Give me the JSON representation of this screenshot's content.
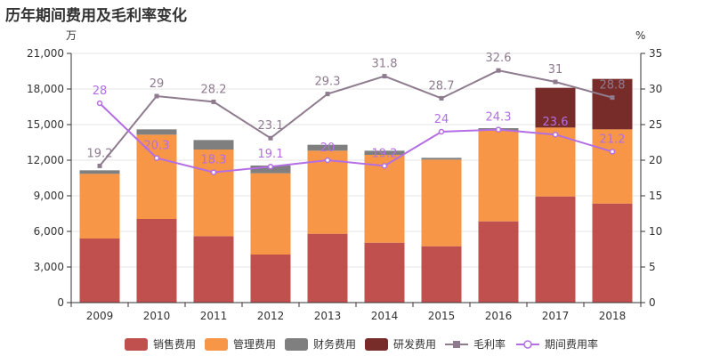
{
  "title": "历年期间费用及毛利率变化",
  "chart_data": {
    "type": "bar",
    "title": "历年期间费用及毛利率变化",
    "categories": [
      "2009",
      "2010",
      "2011",
      "2012",
      "2013",
      "2014",
      "2015",
      "2016",
      "2017",
      "2018"
    ],
    "y_left": {
      "unit": "万",
      "range": [
        0,
        21000
      ],
      "ticks": [
        0,
        3000,
        6000,
        9000,
        12000,
        15000,
        18000,
        21000
      ],
      "tick_labels": [
        "0",
        "3,000",
        "6,000",
        "9,000",
        "12,000",
        "15,000",
        "18,000",
        "21,000"
      ]
    },
    "y_right": {
      "unit": "%",
      "range": [
        0,
        35
      ],
      "ticks": [
        0,
        5,
        10,
        15,
        20,
        25,
        30,
        35
      ],
      "tick_labels": [
        "0",
        "5",
        "10",
        "15",
        "20",
        "25",
        "30",
        "35"
      ]
    },
    "grid": true,
    "legend_position": "bottom",
    "bar_series": [
      {
        "name": "销售费用",
        "color": "#c0504d",
        "values": [
          5400,
          7050,
          5600,
          4050,
          5800,
          5050,
          4750,
          6850,
          8950,
          8350
        ]
      },
      {
        "name": "管理费用",
        "color": "#f79646",
        "values": [
          5450,
          7100,
          7300,
          6850,
          7000,
          7400,
          7300,
          7650,
          5800,
          6250
        ]
      },
      {
        "name": "财务费用",
        "color": "#7f7f7f",
        "values": [
          300,
          450,
          800,
          650,
          500,
          350,
          150,
          200,
          0,
          0
        ]
      },
      {
        "name": "研发费用",
        "color": "#772c2a",
        "values": [
          0,
          0,
          0,
          0,
          0,
          0,
          0,
          0,
          3350,
          4250
        ]
      }
    ],
    "line_series": [
      {
        "name": "毛利率",
        "color": "#8e7b8e",
        "marker": "square",
        "values": [
          19.2,
          29,
          28.2,
          23.1,
          29.3,
          31.8,
          28.7,
          32.6,
          31,
          28.8
        ],
        "labels": [
          "19.2",
          "29",
          "28.2",
          "23.1",
          "29.3",
          "31.8",
          "28.7",
          "32.6",
          "31",
          "28.8"
        ]
      },
      {
        "name": "期间费用率",
        "color": "#b36ee3",
        "marker": "circle",
        "values": [
          28,
          20.3,
          18.3,
          19.1,
          20,
          19.2,
          24,
          24.3,
          23.6,
          21.2
        ],
        "labels": [
          "28",
          "20.3",
          "18.3",
          "19.1",
          "20",
          "19.2",
          "24",
          "24.3",
          "23.6",
          "21.2"
        ]
      }
    ]
  }
}
